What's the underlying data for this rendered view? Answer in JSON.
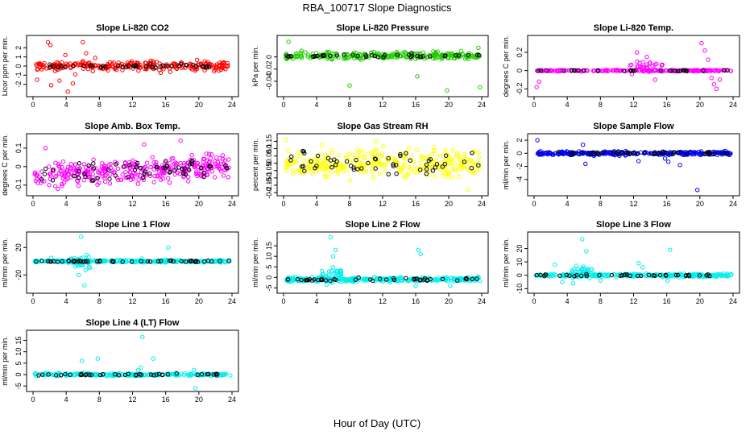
{
  "figure": {
    "title": "RBA_100717  Slope Diagnostics",
    "xlabel": "Hour of Day (UTC)"
  },
  "chart_data": [
    {
      "type": "scatter",
      "title": "Slope Li-820 CO2",
      "ylabel": "Licor ppm per min.",
      "xlim": [
        0,
        24
      ],
      "xticks": [
        0,
        4,
        8,
        12,
        16,
        20,
        24
      ],
      "ylim": [
        -3,
        3
      ],
      "yticks": [
        -2,
        -1,
        0,
        1,
        2
      ],
      "color": "#ff0000",
      "center": 0,
      "spread": 0.35,
      "n": 260,
      "black_n": 40,
      "black_spread": 0.15,
      "outliers": [
        [
          1.8,
          2.6
        ],
        [
          2.1,
          2.3
        ],
        [
          2.2,
          -2.1
        ],
        [
          3.2,
          -1.6
        ],
        [
          4.2,
          -2.8
        ],
        [
          4.8,
          -1.9
        ],
        [
          6.0,
          2.6
        ],
        [
          6.4,
          1.4
        ],
        [
          5.1,
          -0.9
        ],
        [
          0.5,
          -1.5
        ],
        [
          3.9,
          1.2
        ],
        [
          7.5,
          0.9
        ]
      ]
    },
    {
      "type": "scatter",
      "title": "Slope Li-820 Pressure",
      "ylabel": "kPa per min.",
      "xlim": [
        0,
        24
      ],
      "xticks": [
        0,
        4,
        8,
        12,
        16,
        20,
        24
      ],
      "ylim": [
        -0.06,
        0.03
      ],
      "yticks": [
        -0.04,
        -0.02,
        0.0
      ],
      "color": "#22cc00",
      "center": 0.002,
      "spread": 0.004,
      "n": 260,
      "black_n": 40,
      "black_spread": 0.002,
      "outliers": [
        [
          0.6,
          0.025
        ],
        [
          8.0,
          -0.047
        ],
        [
          16.2,
          -0.032
        ],
        [
          19.8,
          -0.055
        ],
        [
          23.8,
          -0.05
        ],
        [
          23.6,
          0.015
        ],
        [
          21.5,
          0.01
        ]
      ]
    },
    {
      "type": "scatter",
      "title": "Slope Li-820 Temp.",
      "ylabel": "degrees C per min.",
      "xlim": [
        0,
        24
      ],
      "xticks": [
        0,
        4,
        8,
        12,
        16,
        20,
        24
      ],
      "ylim": [
        -0.25,
        0.35
      ],
      "yticks": [
        -0.2,
        0.0,
        0.2
      ],
      "color": "#ff00ff",
      "center": 0,
      "spread": 0.005,
      "n": 220,
      "black_n": 30,
      "black_spread": 0.003,
      "cluster": [
        [
          11.5,
          15.5,
          0.04,
          0.12
        ]
      ],
      "outliers": [
        [
          20.2,
          0.3
        ],
        [
          20.6,
          0.22
        ],
        [
          21.0,
          0.12
        ],
        [
          21.4,
          -0.08
        ],
        [
          21.7,
          -0.15
        ],
        [
          22.0,
          -0.2
        ],
        [
          22.4,
          -0.1
        ],
        [
          0.3,
          -0.18
        ],
        [
          0.6,
          -0.12
        ],
        [
          12.4,
          0.2
        ],
        [
          13.6,
          0.15
        ],
        [
          14.6,
          -0.1
        ]
      ]
    },
    {
      "type": "scatter",
      "title": "Slope Amb. Box Temp.",
      "ylabel": "degrees C per min.",
      "xlim": [
        0,
        24
      ],
      "xticks": [
        0,
        4,
        8,
        12,
        16,
        20,
        24
      ],
      "ylim": [
        -0.14,
        0.16
      ],
      "yticks": [
        -0.1,
        0.0,
        0.1
      ],
      "color": "#ff00ff",
      "center": -0.02,
      "trend": 0.05,
      "spread": 0.045,
      "n": 340,
      "black_n": 60,
      "black_spread": 0.035,
      "outliers": [
        [
          17.8,
          0.14
        ],
        [
          13.4,
          0.12
        ],
        [
          3.0,
          -0.12
        ],
        [
          1.5,
          0.1
        ]
      ]
    },
    {
      "type": "scatter",
      "title": "Slope Gas Stream RH",
      "ylabel": "percent per min.",
      "xlim": [
        0,
        24
      ],
      "xticks": [
        0,
        4,
        8,
        12,
        16,
        20,
        24
      ],
      "ylim": [
        -0.2,
        0.18
      ],
      "yticks": [
        -0.2,
        -0.15,
        -0.1,
        -0.05,
        0.0,
        0.05,
        0.1,
        0.15
      ],
      "color": "#ffff00",
      "center": 0,
      "spread": 0.07,
      "n": 330,
      "black_n": 55,
      "black_spread": 0.06,
      "outliers": [
        [
          22.3,
          -0.18
        ],
        [
          0.3,
          0.16
        ],
        [
          11.2,
          0.15
        ]
      ]
    },
    {
      "type": "scatter",
      "title": "Slope Sample Flow",
      "ylabel": "ml/min per min.",
      "xlim": [
        0,
        24
      ],
      "xticks": [
        0,
        4,
        8,
        12,
        16,
        20,
        24
      ],
      "ylim": [
        -6,
        2.5
      ],
      "yticks": [
        -4,
        -2,
        0,
        2
      ],
      "color": "#0000ee",
      "center": 0,
      "spread": 0.2,
      "n": 280,
      "black_n": 40,
      "black_spread": 0.15,
      "outliers": [
        [
          0.4,
          2.0
        ],
        [
          5.9,
          1.3
        ],
        [
          6.2,
          -1.6
        ],
        [
          12.6,
          -1.2
        ],
        [
          16.2,
          -1.3
        ],
        [
          17.6,
          -1.8
        ],
        [
          19.7,
          -5.6
        ],
        [
          15.8,
          -0.8
        ]
      ]
    },
    {
      "type": "scatter",
      "title": "Slope Line 1 Flow",
      "ylabel": "ml/min per min.",
      "xlim": [
        0,
        24
      ],
      "xticks": [
        0,
        4,
        8,
        12,
        16,
        20,
        24
      ],
      "ylim": [
        -42,
        38
      ],
      "yticks": [
        -20,
        20
      ],
      "color": "#00eeee",
      "center": 0,
      "spread": 1.2,
      "n": 260,
      "black_n": 50,
      "black_spread": 0.8,
      "cluster": [
        [
          4.5,
          7.0,
          0,
          14
        ]
      ],
      "outliers": [
        [
          5.8,
          36
        ],
        [
          6.2,
          -35
        ],
        [
          5.5,
          -20
        ],
        [
          16.3,
          20
        ],
        [
          2.2,
          5
        ],
        [
          13.1,
          4
        ]
      ]
    },
    {
      "type": "scatter",
      "title": "Slope Line 2 Flow",
      "ylabel": "ml/min per min.",
      "xlim": [
        0,
        24
      ],
      "xticks": [
        0,
        4,
        8,
        12,
        16,
        20,
        24
      ],
      "ylim": [
        -6,
        20
      ],
      "yticks": [
        -5,
        0,
        5,
        10,
        15
      ],
      "color": "#00eeee",
      "center": -1,
      "spread": 0.7,
      "n": 280,
      "black_n": 45,
      "black_spread": 0.5,
      "cluster": [
        [
          4.5,
          7.0,
          1.5,
          4.5
        ]
      ],
      "outliers": [
        [
          5.7,
          19
        ],
        [
          6.0,
          10
        ],
        [
          6.3,
          13
        ],
        [
          16.3,
          13
        ],
        [
          16.6,
          11
        ],
        [
          16.0,
          -4
        ],
        [
          20.2,
          -4
        ],
        [
          5.2,
          -3.5
        ]
      ]
    },
    {
      "type": "scatter",
      "title": "Slope Line 3 Flow",
      "ylabel": "ml/min per min.",
      "xlim": [
        0,
        24
      ],
      "xticks": [
        0,
        4,
        8,
        12,
        16,
        20,
        24
      ],
      "ylim": [
        -11,
        30
      ],
      "yticks": [
        -10,
        0,
        10,
        20
      ],
      "color": "#00eeee",
      "center": 0,
      "spread": 0.8,
      "n": 260,
      "black_n": 40,
      "black_spread": 0.6,
      "cluster": [
        [
          4.5,
          7.0,
          2,
          7
        ]
      ],
      "outliers": [
        [
          5.8,
          27
        ],
        [
          6.3,
          18
        ],
        [
          2.5,
          8
        ],
        [
          12.6,
          9
        ],
        [
          13.1,
          6
        ],
        [
          16.4,
          19
        ],
        [
          16.1,
          -4
        ],
        [
          3.4,
          -5
        ],
        [
          4.7,
          -6
        ],
        [
          8.0,
          -4
        ]
      ]
    },
    {
      "type": "scatter",
      "title": "Slope Line 4 (LT) Flow",
      "ylabel": "ml/min per min.",
      "xlim": [
        0,
        24
      ],
      "xticks": [
        0,
        4,
        8,
        12,
        16,
        20,
        24
      ],
      "ylim": [
        -6,
        18
      ],
      "yticks": [
        -5,
        0,
        5,
        10,
        15
      ],
      "color": "#00eeee",
      "center": 0,
      "spread": 0.4,
      "n": 230,
      "black_n": 40,
      "black_spread": 0.3,
      "outliers": [
        [
          13.2,
          16.5
        ],
        [
          14.5,
          7
        ],
        [
          5.9,
          6
        ],
        [
          7.8,
          7
        ],
        [
          19.6,
          -6
        ],
        [
          13.0,
          3
        ],
        [
          12.7,
          2
        ],
        [
          19.4,
          2
        ]
      ]
    }
  ]
}
